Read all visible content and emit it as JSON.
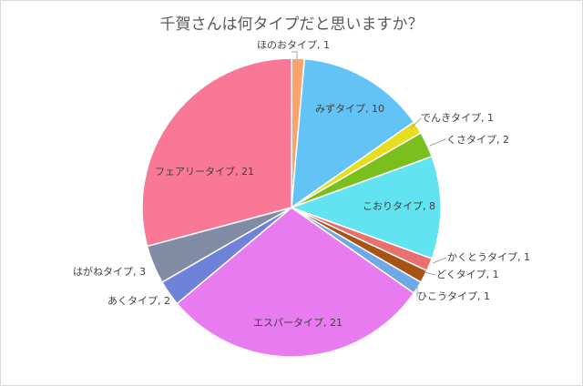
{
  "chart_data": {
    "type": "pie",
    "title": "千賀さんは何タイプだと思いますか？",
    "slices": [
      {
        "label": "ほのおタイプ",
        "value": 1,
        "color": "#F8A46A"
      },
      {
        "label": "みずタイプ",
        "value": 10,
        "color": "#63C3F6"
      },
      {
        "label": "でんきタイプ",
        "value": 1,
        "color": "#E6DE1E"
      },
      {
        "label": "くさタイプ",
        "value": 2,
        "color": "#7BBF1E"
      },
      {
        "label": "こおりタイプ",
        "value": 8,
        "color": "#62E3F2"
      },
      {
        "label": "かくとうタイプ",
        "value": 1,
        "color": "#E8706E"
      },
      {
        "label": "どくタイプ",
        "value": 1,
        "color": "#A85214"
      },
      {
        "label": "ひこうタイプ",
        "value": 1,
        "color": "#6FA8E8"
      },
      {
        "label": "エスパータイプ",
        "value": 21,
        "color": "#E97BF0"
      },
      {
        "label": "あくタイプ",
        "value": 2,
        "color": "#6D82D8"
      },
      {
        "label": "はがねタイプ",
        "value": 3,
        "color": "#7F8CA4"
      },
      {
        "label": "フェアリータイプ",
        "value": 21,
        "color": "#F87896"
      }
    ],
    "legend": "none"
  }
}
